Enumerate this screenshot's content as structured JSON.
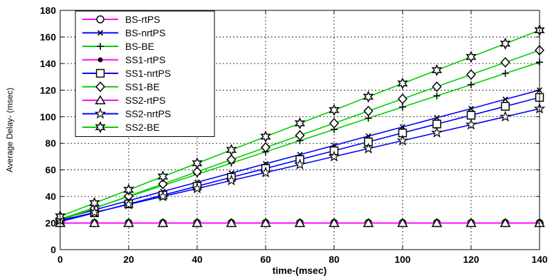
{
  "chart_data": {
    "type": "line",
    "title": "",
    "xlabel": "time-(msec)",
    "ylabel": "Average Delay- (msec)",
    "xlim": [
      0,
      140
    ],
    "ylim": [
      0,
      180
    ],
    "xticks": [
      0,
      20,
      40,
      60,
      80,
      100,
      120,
      140
    ],
    "yticks": [
      0,
      20,
      40,
      60,
      80,
      100,
      120,
      140,
      160,
      180
    ],
    "grid": true,
    "legend_position": "top-left",
    "x": [
      0,
      10,
      20,
      30,
      40,
      50,
      60,
      70,
      80,
      90,
      100,
      110,
      120,
      130,
      140
    ],
    "series": [
      {
        "name": "BS-rtPS",
        "color": "#ff00ff",
        "marker": "circle",
        "values": [
          20,
          20,
          20,
          20,
          20,
          20,
          20,
          20,
          20,
          20,
          20,
          20,
          20,
          20,
          20
        ]
      },
      {
        "name": "BS-nrtPS",
        "color": "#0000ff",
        "marker": "x",
        "values": [
          23,
          29.9,
          36.9,
          43.8,
          50.7,
          57.6,
          64.6,
          71.5,
          78.4,
          85.4,
          92.3,
          99.2,
          106.1,
          113.1,
          120
        ]
      },
      {
        "name": "BS-BE",
        "color": "#00cc00",
        "marker": "plus",
        "values": [
          23,
          31.4,
          39.9,
          48.3,
          56.7,
          65.1,
          73.6,
          82,
          90.4,
          98.9,
          107.3,
          115.7,
          124.1,
          132.6,
          141
        ]
      },
      {
        "name": "SS1-rtPS",
        "color": "#ff00ff",
        "marker": "dot",
        "values": [
          20,
          20,
          20,
          20,
          20,
          20,
          20,
          20,
          20,
          20,
          20,
          20,
          20,
          20,
          20
        ]
      },
      {
        "name": "SS1-nrtPS",
        "color": "#0000ff",
        "marker": "square",
        "values": [
          21,
          27.7,
          34.4,
          41,
          47.7,
          54.4,
          61.1,
          67.8,
          74.4,
          81.1,
          87.8,
          94.5,
          101.1,
          107.8,
          114.5
        ]
      },
      {
        "name": "SS1-BE",
        "color": "#00cc00",
        "marker": "diamond",
        "values": [
          22,
          31.1,
          40.3,
          49.4,
          58.6,
          67.7,
          76.9,
          86,
          95.1,
          104.3,
          113.4,
          122.6,
          131.7,
          140.9,
          150
        ]
      },
      {
        "name": "SS2-rtPS",
        "color": "#ff00ff",
        "marker": "triangle",
        "values": [
          20,
          20,
          20,
          20,
          20,
          20,
          20,
          20,
          20,
          20,
          20,
          20,
          20,
          20,
          20
        ]
      },
      {
        "name": "SS2-nrtPS",
        "color": "#0000ff",
        "marker": "star",
        "values": [
          22,
          28,
          34,
          40,
          46,
          52,
          58,
          64,
          70,
          76,
          82,
          88,
          94,
          100,
          106
        ]
      },
      {
        "name": "SS2-BE",
        "color": "#00cc00",
        "marker": "hexagram",
        "values": [
          25,
          35,
          45,
          55,
          65,
          75,
          85,
          95,
          105,
          115,
          125,
          135,
          145,
          155,
          165
        ]
      }
    ]
  }
}
